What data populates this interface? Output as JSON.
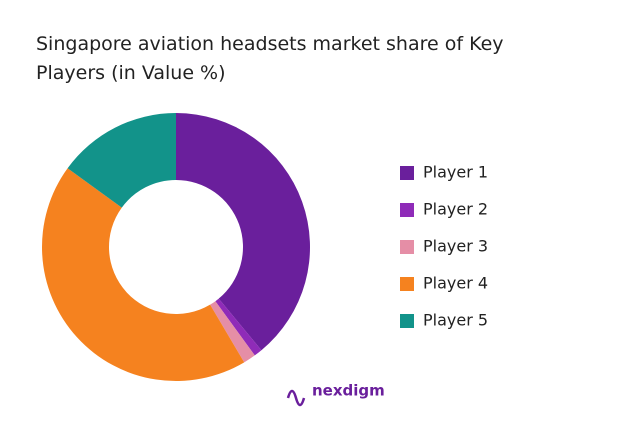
{
  "chart_data": {
    "type": "donut",
    "title": "Singapore aviation headsets market  share of Key Players (in Value %)",
    "categories": [
      "Player 1",
      "Player 2",
      "Player 3",
      "Player 4",
      "Player 5"
    ],
    "values": [
      39,
      1,
      1.5,
      43.5,
      15
    ],
    "colors": [
      "#6a1f9c",
      "#8f2bb8",
      "#e58ea6",
      "#f5821f",
      "#12938a"
    ],
    "legend": "right"
  },
  "logo": "nexdigm"
}
